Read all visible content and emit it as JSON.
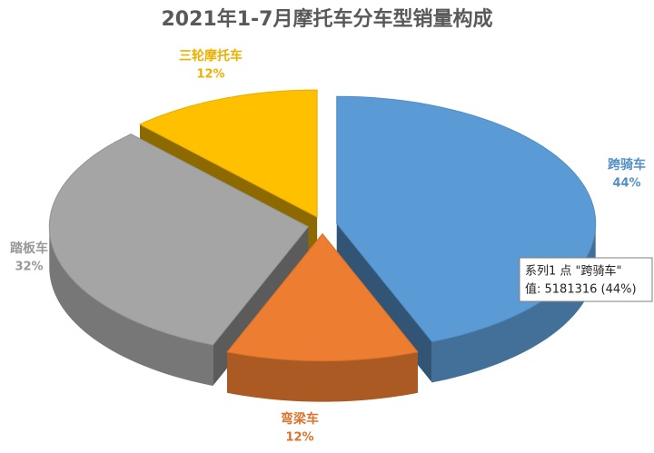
{
  "chart_data": {
    "type": "pie3d",
    "title": "2021年1-7月摩托车分车型销量构成",
    "categories": [
      "跨骑车",
      "弯梁车",
      "踏板车",
      "三轮摩托车"
    ],
    "values": [
      44,
      12,
      32,
      12
    ],
    "value_labels": [
      "44%",
      "12%",
      "32%",
      "12%"
    ],
    "colors": [
      "#5b9bd5",
      "#ed7d31",
      "#a5a5a5",
      "#ffc000"
    ],
    "tooltip": {
      "line1": "系列1 点 \"跨骑车\"",
      "line2": "值: 5181316  (44%)"
    }
  }
}
